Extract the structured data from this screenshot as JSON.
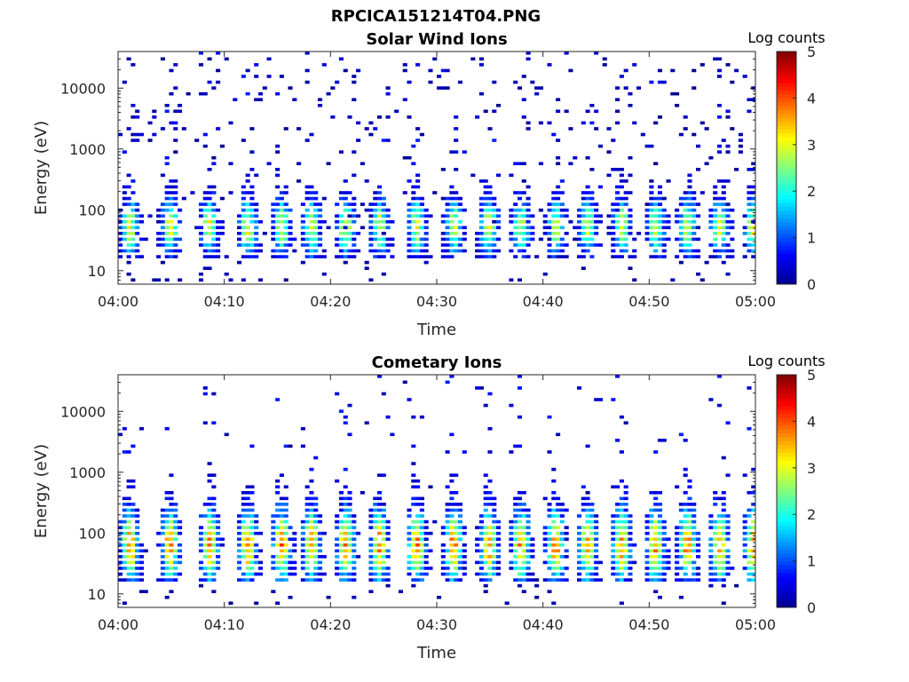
{
  "figure": {
    "title": "RPCICA151214T04.PNG"
  },
  "colormap": {
    "name": "jet",
    "stops": [
      "#00008f",
      "#0000ff",
      "#007fff",
      "#00ffff",
      "#7fff7f",
      "#ffff00",
      "#ff7f00",
      "#ff0000",
      "#800000"
    ]
  },
  "chart_data": [
    {
      "type": "heatmap",
      "title": "Solar Wind Ions",
      "xlabel": "Time",
      "ylabel": "Energy (eV)",
      "yscale": "log",
      "ylim": [
        6,
        40000
      ],
      "xlim": [
        "04:00",
        "05:00"
      ],
      "x_ticks": [
        "04:00",
        "04:10",
        "04:20",
        "04:30",
        "04:40",
        "04:50",
        "05:00"
      ],
      "y_ticks": [
        "10",
        "100",
        "1000",
        "10000"
      ],
      "colorbar": {
        "label": "Log counts",
        "range": [
          0,
          5
        ],
        "ticks": [
          "0",
          "1",
          "2",
          "3",
          "4",
          "5"
        ]
      },
      "burst_start_minutes": [
        0.5,
        4.3,
        8.0,
        11.6,
        14.8,
        17.6,
        20.8,
        24.0,
        27.5,
        31.0,
        34.3,
        37.3,
        40.6,
        43.6,
        46.8,
        50.0,
        53.0,
        56.0,
        59.2
      ],
      "peak_energy_eV": 50,
      "peak_log_counts": 3.0,
      "grid": false
    },
    {
      "type": "heatmap",
      "title": "Cometary Ions",
      "xlabel": "Time",
      "ylabel": "Energy (eV)",
      "yscale": "log",
      "ylim": [
        6,
        40000
      ],
      "xlim": [
        "04:00",
        "05:00"
      ],
      "x_ticks": [
        "04:00",
        "04:10",
        "04:20",
        "04:30",
        "04:40",
        "04:50",
        "05:00"
      ],
      "y_ticks": [
        "10",
        "100",
        "1000",
        "10000"
      ],
      "colorbar": {
        "label": "Log counts",
        "range": [
          0,
          5
        ],
        "ticks": [
          "0",
          "1",
          "2",
          "3",
          "4",
          "5"
        ]
      },
      "burst_start_minutes": [
        0.5,
        4.3,
        8.0,
        11.6,
        14.8,
        17.6,
        20.8,
        24.0,
        27.5,
        31.0,
        34.3,
        37.3,
        40.6,
        43.6,
        46.8,
        50.0,
        53.0,
        56.0,
        59.2
      ],
      "peak_energy_eV": 60,
      "peak_log_counts": 3.8,
      "grid": false
    }
  ]
}
